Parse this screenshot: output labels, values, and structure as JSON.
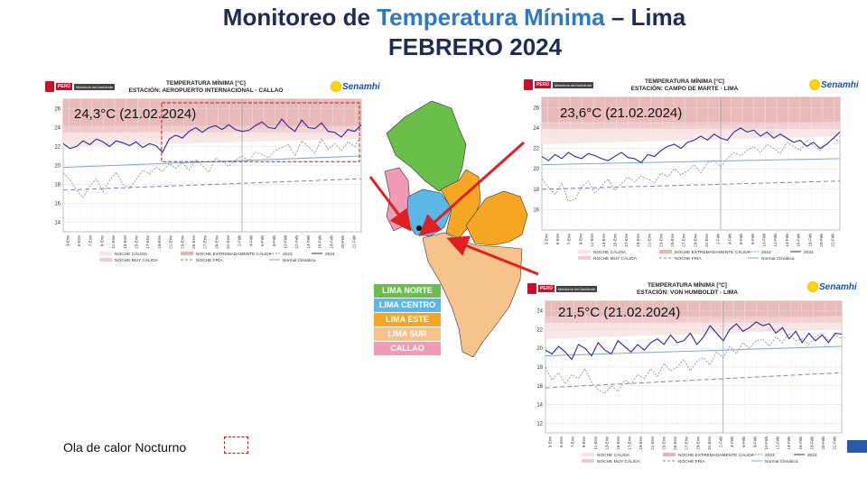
{
  "title": {
    "line1_prefix": "Monitoreo de ",
    "line1_highlight": "Temperatura Mínima",
    "line1_suffix": " – Lima",
    "line2": "FEBRERO  2024"
  },
  "logos": {
    "peru": "PERÚ",
    "ministry": "Ministerio del Ambiente",
    "senamhi": "Senamhi"
  },
  "map_legend": [
    {
      "label": "LIMA NORTE",
      "color": "#6abf4b"
    },
    {
      "label": "LIMA CENTRO",
      "color": "#5bb8e6"
    },
    {
      "label": "LIMA ESTE",
      "color": "#f5a623"
    },
    {
      "label": "LIMA SUR",
      "color": "#f6c38a"
    },
    {
      "label": "CALLAO",
      "color": "#f29bb6"
    }
  ],
  "bottom_note": "Ola de calor  Nocturno",
  "chart_legend": {
    "calida": "NOCHE CÁLIDA",
    "muy_calida": "NOCHE MUY CÁLIDA",
    "extrema": "NOCHE EXTREMADAMENTE CÁLIDA",
    "fria": "NOCHE FRÍA",
    "y2023": "2023",
    "y2024": "2024",
    "normal": "Normal Climática"
  },
  "chart_data": [
    {
      "type": "line",
      "title": "TEMPERATURA MÍNIMA [°C]",
      "subtitle": "ESTACIÓN: AEROPUERTO INTERNACIONAL - CALLAO",
      "annotation": "24,3°C (21.02.2024)",
      "ylim": [
        13,
        27
      ],
      "yticks": [
        14,
        16,
        18,
        20,
        22,
        24,
        26
      ],
      "xticks": [
        "3-Ene",
        "5-Ene",
        "7-Ene",
        "9-Ene",
        "11-Ene",
        "13-Ene",
        "15-Ene",
        "17-Ene",
        "19-Ene",
        "21-Ene",
        "23-Ene",
        "25-Ene",
        "27-Ene",
        "29-Ene",
        "31-Ene",
        "2-Feb",
        "4-Feb",
        "6-Feb",
        "8-Feb",
        "10-Feb",
        "12-Feb",
        "14-Feb",
        "16-Feb",
        "18-Feb",
        "20-Feb",
        "22-Feb"
      ],
      "series": [
        {
          "name": "2024",
          "values": [
            22.3,
            21.8,
            22.0,
            22.6,
            22.2,
            22.8,
            22.5,
            22.0,
            22.6,
            22.4,
            22.1,
            22.5,
            21.9,
            22.3,
            22.1,
            21.4,
            22.8,
            23.2,
            22.9,
            23.6,
            24.0,
            23.5,
            24.0,
            24.2,
            23.8,
            24.3,
            23.8,
            23.6,
            23.7,
            24.2,
            24.6,
            24.0,
            23.9,
            24.9,
            24.1,
            23.6,
            24.8,
            24.0,
            23.9,
            24.5,
            23.6,
            23.5,
            23.0,
            23.8,
            23.6,
            24.3
          ]
        },
        {
          "name": "2023",
          "values": [
            19.2,
            18.5,
            17.4,
            16.6,
            17.8,
            18.6,
            17.2,
            18.4,
            19.3,
            18.0,
            17.6,
            18.5,
            19.5,
            19.1,
            19.8,
            19.4,
            20.2,
            19.7,
            20.3,
            19.5,
            20.6,
            20.0,
            19.3,
            20.8,
            20.4,
            19.9,
            20.6,
            21.0,
            20.5,
            21.4,
            21.2,
            20.8,
            21.6,
            21.9,
            22.2,
            21.0,
            22.6,
            22.0,
            21.3,
            22.8,
            21.7,
            22.3,
            21.6,
            22.5,
            22.0,
            23.2
          ]
        }
      ],
      "normal": [
        19.8,
        21.0
      ],
      "cold": [
        17.4,
        18.6
      ],
      "hot": [
        22.0,
        22.8
      ],
      "heatwave_box": true
    },
    {
      "type": "line",
      "title": "TEMPERATURA MÍNIMA [°C]",
      "subtitle": "ESTACIÓN: CAMPO DE MARTE - LIMA",
      "annotation": "23,6°C (21.02.2024)",
      "ylim": [
        14,
        27
      ],
      "yticks": [
        16,
        18,
        20,
        22,
        24,
        26
      ],
      "xticks": [
        "3-Ene",
        "5-Ene",
        "7-Ene",
        "9-Ene",
        "11-Ene",
        "13-Ene",
        "15-Ene",
        "17-Ene",
        "19-Ene",
        "21-Ene",
        "23-Ene",
        "25-Ene",
        "27-Ene",
        "29-Ene",
        "31-Ene",
        "2-Feb",
        "4-Feb",
        "6-Feb",
        "8-Feb",
        "10-Feb",
        "12-Feb",
        "14-Feb",
        "16-Feb",
        "18-Feb",
        "20-Feb",
        "22-Feb"
      ],
      "series": [
        {
          "name": "2024",
          "values": [
            21.2,
            20.8,
            21.4,
            21.0,
            21.6,
            21.2,
            21.0,
            21.5,
            21.3,
            21.0,
            20.8,
            21.2,
            21.6,
            21.1,
            21.0,
            20.6,
            21.4,
            21.2,
            21.8,
            22.2,
            22.4,
            22.0,
            22.6,
            22.8,
            23.2,
            22.8,
            23.4,
            23.0,
            22.8,
            23.6,
            24.0,
            23.6,
            23.8,
            23.2,
            23.6,
            23.0,
            23.4,
            23.0,
            22.6,
            22.8,
            22.2,
            22.6,
            22.0,
            22.4,
            23.0,
            23.6
          ]
        },
        {
          "name": "2023",
          "values": [
            19.0,
            18.2,
            17.5,
            18.6,
            16.8,
            17.0,
            18.2,
            18.8,
            17.6,
            18.3,
            19.0,
            17.9,
            18.5,
            19.2,
            18.7,
            19.3,
            19.0,
            18.6,
            19.6,
            19.2,
            20.0,
            19.4,
            19.8,
            20.4,
            19.6,
            20.6,
            20.8,
            20.2,
            21.0,
            21.6,
            21.3,
            21.8,
            22.2,
            21.6,
            22.4,
            22.0,
            21.5,
            22.6,
            22.2,
            21.8,
            22.8,
            22.3,
            21.8,
            22.4,
            23.0,
            22.6
          ]
        }
      ],
      "normal": [
        20.4,
        21.0
      ],
      "cold": [
        18.0,
        18.8
      ],
      "hot": [
        22.4,
        23.2
      ],
      "heatwave_box": false
    },
    {
      "type": "line",
      "title": "TEMPERATURA MÍNIMA [°C]",
      "subtitle": "ESTACIÓN: VON HUMBOLDT - LIMA",
      "annotation": "21,5°C (21.02.2024)",
      "ylim": [
        11,
        25
      ],
      "yticks": [
        12,
        14,
        16,
        18,
        20,
        22,
        24
      ],
      "xticks": [
        "3-Ene",
        "5-Ene",
        "7-Ene",
        "9-Ene",
        "11-Ene",
        "13-Ene",
        "15-Ene",
        "17-Ene",
        "19-Ene",
        "21-Ene",
        "23-Ene",
        "25-Ene",
        "27-Ene",
        "29-Ene",
        "31-Ene",
        "2-Feb",
        "4-Feb",
        "6-Feb",
        "8-Feb",
        "10-Feb",
        "12-Feb",
        "14-Feb",
        "16-Feb",
        "18-Feb",
        "20-Feb",
        "22-Feb"
      ],
      "series": [
        {
          "name": "2024",
          "values": [
            19.8,
            19.4,
            20.2,
            19.6,
            18.8,
            20.4,
            20.0,
            19.2,
            20.6,
            19.8,
            19.4,
            20.8,
            20.2,
            19.6,
            20.4,
            19.8,
            20.6,
            21.0,
            20.4,
            21.4,
            20.6,
            20.8,
            21.6,
            20.4,
            21.2,
            22.4,
            21.6,
            20.8,
            22.0,
            22.6,
            21.8,
            22.2,
            22.8,
            22.4,
            22.6,
            21.6,
            22.2,
            21.0,
            21.8,
            20.6,
            21.6,
            20.8,
            21.4,
            20.6,
            21.6,
            21.5
          ]
        },
        {
          "name": "2023",
          "values": [
            18.0,
            16.6,
            17.4,
            16.2,
            17.2,
            16.8,
            17.8,
            16.4,
            15.6,
            15.2,
            16.0,
            15.4,
            16.6,
            16.2,
            17.2,
            16.8,
            17.8,
            17.0,
            18.4,
            17.6,
            18.0,
            18.8,
            17.6,
            18.6,
            19.0,
            18.2,
            19.6,
            19.0,
            20.2,
            19.4,
            20.6,
            20.0,
            20.8,
            21.0,
            20.2,
            21.2,
            20.6,
            21.6,
            20.8,
            21.0,
            20.4,
            21.2,
            21.6,
            20.8,
            21.4,
            21.0
          ]
        }
      ],
      "normal": [
        19.2,
        20.2
      ],
      "cold": [
        15.8,
        17.4
      ],
      "hot": [
        21.0,
        22.0
      ],
      "heatwave_box": false
    }
  ]
}
